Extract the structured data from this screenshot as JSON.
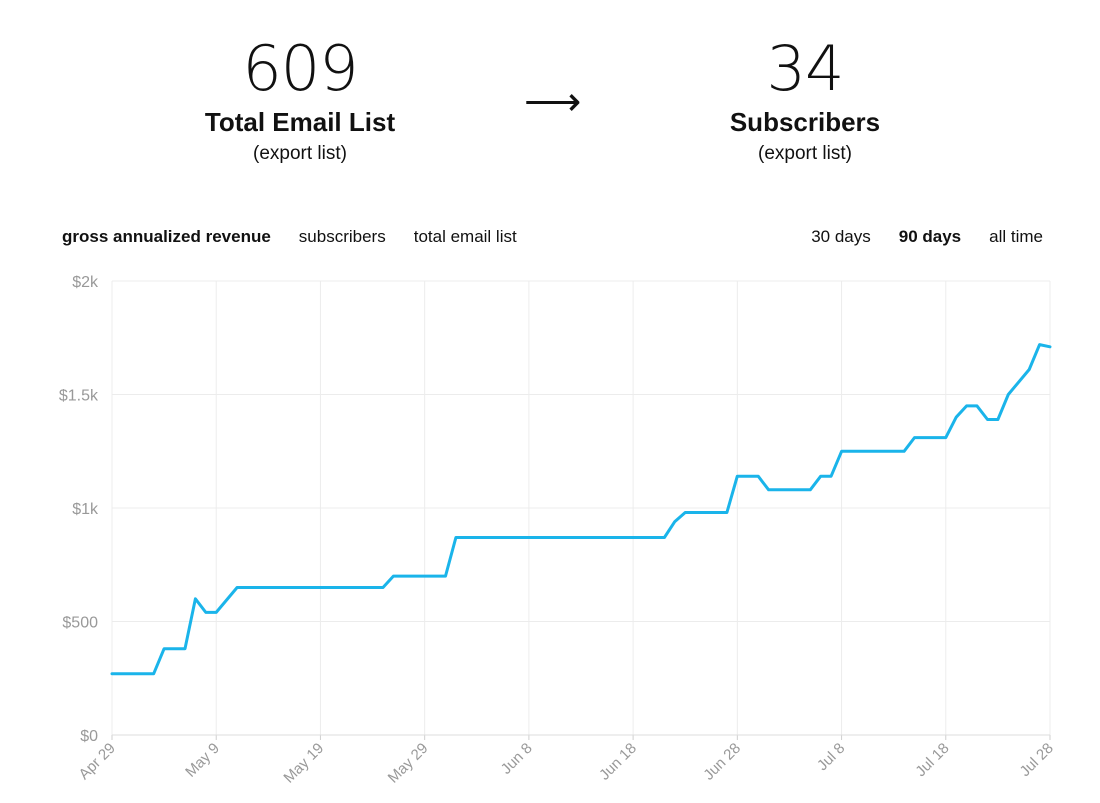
{
  "stats": {
    "left": {
      "number": "609",
      "label": "Total Email List",
      "link": "(export list)"
    },
    "arrow": "⟶",
    "right": {
      "number": "34",
      "label": "Subscribers",
      "link": "(export list)"
    }
  },
  "metric_tabs": [
    {
      "label": "gross annualized revenue",
      "active": true
    },
    {
      "label": "subscribers",
      "active": false
    },
    {
      "label": "total email list",
      "active": false
    }
  ],
  "range_tabs": [
    {
      "label": "30 days",
      "active": false
    },
    {
      "label": "90 days",
      "active": true
    },
    {
      "label": "all time",
      "active": false
    }
  ],
  "chart_data": {
    "type": "line",
    "title": "",
    "xlabel": "",
    "ylabel": "",
    "line_color": "#1ab4ea",
    "grid": true,
    "ylim": [
      0,
      2000
    ],
    "yticks": [
      0,
      500,
      1000,
      1500,
      2000
    ],
    "ytick_labels": [
      "$0",
      "$500",
      "$1k",
      "$1.5k",
      "$2k"
    ],
    "xlim": [
      "2023-04-29",
      "2023-07-28"
    ],
    "xticks": [
      "2023-04-29",
      "2023-05-09",
      "2023-05-19",
      "2023-05-29",
      "2023-06-08",
      "2023-06-18",
      "2023-06-28",
      "2023-07-08",
      "2023-07-18",
      "2023-07-28"
    ],
    "xtick_labels": [
      "Apr 29",
      "May 9",
      "May 19",
      "May 29",
      "Jun 8",
      "Jun 18",
      "Jun 28",
      "Jul 8",
      "Jul 18",
      "Jul 28"
    ],
    "series": [
      {
        "points": [
          [
            "2023-04-29",
            270
          ],
          [
            "2023-05-03",
            270
          ],
          [
            "2023-05-04",
            380
          ],
          [
            "2023-05-06",
            380
          ],
          [
            "2023-05-07",
            600
          ],
          [
            "2023-05-08",
            540
          ],
          [
            "2023-05-09",
            540
          ],
          [
            "2023-05-11",
            650
          ],
          [
            "2023-05-25",
            650
          ],
          [
            "2023-05-26",
            700
          ],
          [
            "2023-05-31",
            700
          ],
          [
            "2023-06-01",
            870
          ],
          [
            "2023-06-21",
            870
          ],
          [
            "2023-06-22",
            940
          ],
          [
            "2023-06-23",
            980
          ],
          [
            "2023-06-27",
            980
          ],
          [
            "2023-06-28",
            1140
          ],
          [
            "2023-06-30",
            1140
          ],
          [
            "2023-07-01",
            1080
          ],
          [
            "2023-07-05",
            1080
          ],
          [
            "2023-07-06",
            1140
          ],
          [
            "2023-07-07",
            1140
          ],
          [
            "2023-07-08",
            1250
          ],
          [
            "2023-07-14",
            1250
          ],
          [
            "2023-07-15",
            1310
          ],
          [
            "2023-07-18",
            1310
          ],
          [
            "2023-07-19",
            1400
          ],
          [
            "2023-07-20",
            1450
          ],
          [
            "2023-07-21",
            1450
          ],
          [
            "2023-07-22",
            1390
          ],
          [
            "2023-07-23",
            1390
          ],
          [
            "2023-07-24",
            1500
          ],
          [
            "2023-07-26",
            1610
          ],
          [
            "2023-07-27",
            1720
          ],
          [
            "2023-07-28",
            1710
          ]
        ]
      }
    ]
  }
}
